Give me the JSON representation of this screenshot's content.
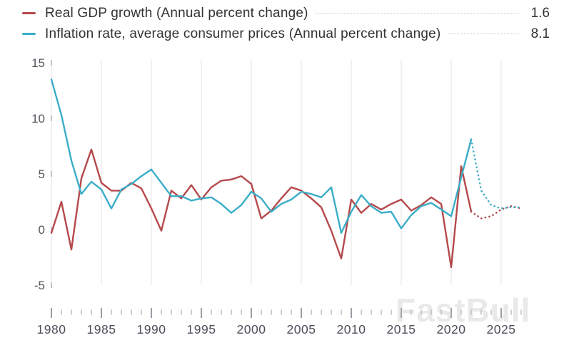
{
  "legend": {
    "items": [
      {
        "label": "Real GDP growth (Annual percent change)",
        "value": "1.6",
        "color": "#b5494c"
      },
      {
        "label": "Inflation rate, average consumer prices (Annual percent change)",
        "value": "8.1",
        "color": "#3badc7"
      }
    ]
  },
  "watermark": "FastBull",
  "chart_data": {
    "type": "line",
    "title": "",
    "xlabel": "",
    "ylabel": "Annual percent change",
    "x_start": 1980,
    "x_end": 2027,
    "forecast_start": 2022,
    "forecast_style": "dotted",
    "x_tick_labels": [
      "1980",
      "1985",
      "1990",
      "1995",
      "2000",
      "2005",
      "2010",
      "2015",
      "2020",
      "2025"
    ],
    "y_ticks": [
      15,
      10,
      5,
      0,
      -5
    ],
    "ylim": [
      -5,
      15.2
    ],
    "grid": "vertical",
    "legend_position": "top",
    "series": [
      {
        "name": "Real GDP growth (Annual percent change)",
        "color": "#b5494c",
        "latest_value": 1.6,
        "values": [
          -0.3,
          2.5,
          -1.8,
          4.6,
          7.2,
          4.2,
          3.5,
          3.5,
          4.2,
          3.7,
          1.9,
          -0.1,
          3.5,
          2.8,
          4.0,
          2.7,
          3.8,
          4.4,
          4.5,
          4.8,
          4.1,
          1.0,
          1.7,
          2.8,
          3.8,
          3.5,
          2.8,
          2.0,
          -0.1,
          -2.6,
          2.7,
          1.5,
          2.3,
          1.8,
          2.3,
          2.7,
          1.7,
          2.2,
          2.9,
          2.3,
          -3.4,
          5.7,
          1.6,
          1.0,
          1.2,
          1.8,
          2.1,
          1.9
        ]
      },
      {
        "name": "Inflation rate, average consumer prices (Annual percent change)",
        "color": "#3badc7",
        "latest_value": 8.1,
        "values": [
          13.5,
          10.3,
          6.2,
          3.2,
          4.3,
          3.6,
          1.9,
          3.6,
          4.1,
          4.8,
          5.4,
          4.2,
          3.0,
          3.0,
          2.6,
          2.8,
          2.9,
          2.3,
          1.5,
          2.2,
          3.4,
          2.8,
          1.6,
          2.3,
          2.7,
          3.4,
          3.2,
          2.9,
          3.8,
          -0.3,
          1.6,
          3.1,
          2.1,
          1.5,
          1.6,
          0.1,
          1.3,
          2.1,
          2.4,
          1.8,
          1.2,
          4.7,
          8.1,
          3.5,
          2.2,
          1.9,
          2.0,
          2.0
        ]
      }
    ]
  }
}
